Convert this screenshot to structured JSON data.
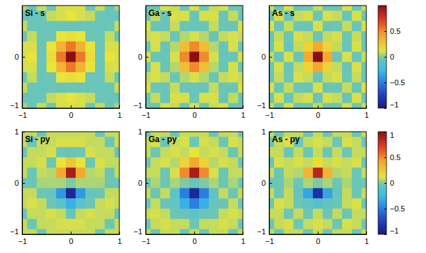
{
  "chart_data": [
    {
      "type": "heatmap",
      "title": "Si - s",
      "x": [
        -1,
        -0.8,
        -0.6,
        -0.4,
        -0.2,
        0,
        0.2,
        0.4,
        0.6,
        0.8,
        1
      ],
      "y": [
        1,
        0.8,
        0.6,
        0.4,
        0.2,
        0,
        -0.2,
        -0.4,
        -0.6,
        -0.8,
        -1
      ],
      "values": [
        [
          0.05,
          -0.04,
          0.08,
          -0.03,
          0.1,
          0.1,
          0.1,
          -0.03,
          0.08,
          -0.04,
          0.05
        ],
        [
          -0.04,
          -0.05,
          -0.03,
          0.08,
          0.1,
          0.12,
          0.1,
          0.08,
          -0.03,
          -0.05,
          -0.04
        ],
        [
          0.08,
          -0.03,
          -0.05,
          -0.04,
          -0.04,
          -0.04,
          -0.04,
          -0.04,
          -0.05,
          -0.03,
          0.08
        ],
        [
          -0.03,
          0.08,
          -0.04,
          -0.03,
          0.12,
          0.15,
          0.12,
          -0.03,
          -0.04,
          0.08,
          -0.03
        ],
        [
          0.1,
          0.1,
          -0.04,
          0.12,
          0.35,
          0.55,
          0.35,
          0.12,
          -0.04,
          0.1,
          0.1
        ],
        [
          0.1,
          0.12,
          -0.04,
          0.15,
          0.55,
          1.0,
          0.55,
          0.15,
          -0.04,
          0.12,
          0.1
        ],
        [
          0.1,
          0.1,
          -0.04,
          0.12,
          0.35,
          0.55,
          0.35,
          0.12,
          -0.04,
          0.1,
          0.1
        ],
        [
          -0.03,
          0.08,
          -0.04,
          -0.03,
          0.12,
          0.15,
          0.12,
          -0.03,
          -0.04,
          0.08,
          -0.03
        ],
        [
          0.08,
          -0.03,
          -0.05,
          -0.04,
          -0.04,
          -0.04,
          -0.04,
          -0.04,
          -0.05,
          -0.03,
          0.08
        ],
        [
          -0.04,
          -0.05,
          -0.03,
          0.08,
          0.1,
          0.12,
          0.1,
          0.08,
          -0.03,
          -0.05,
          -0.04
        ],
        [
          0.05,
          -0.04,
          0.08,
          -0.03,
          0.1,
          0.1,
          0.1,
          -0.03,
          0.08,
          -0.04,
          0.05
        ]
      ],
      "xlim": [
        -1,
        1
      ],
      "ylim": [
        -1,
        1
      ],
      "xticks": [
        {
          "value": -1,
          "label": "−1"
        },
        0,
        1
      ],
      "yticks": [
        {
          "value": -1,
          "label": "−1"
        },
        0
      ],
      "colorbar_range": [
        -1,
        1
      ]
    },
    {
      "type": "heatmap",
      "title": "Ga - s",
      "x": [
        -1,
        -0.8,
        -0.6,
        -0.4,
        -0.2,
        0,
        0.2,
        0.4,
        0.6,
        0.8,
        1
      ],
      "y": [
        1,
        0.8,
        0.6,
        0.4,
        0.2,
        0,
        -0.2,
        -0.4,
        -0.6,
        -0.8,
        -1
      ],
      "values": [
        [
          -0.03,
          -0.04,
          0.1,
          0.08,
          -0.03,
          0.1,
          -0.03,
          0.08,
          0.1,
          -0.04,
          -0.03
        ],
        [
          -0.04,
          0.08,
          -0.04,
          0.1,
          0.1,
          -0.04,
          0.1,
          0.1,
          -0.04,
          0.08,
          -0.04
        ],
        [
          0.1,
          -0.04,
          -0.04,
          0.08,
          -0.04,
          -0.05,
          -0.04,
          0.08,
          -0.04,
          -0.04,
          0.1
        ],
        [
          0.08,
          0.1,
          0.08,
          -0.04,
          0.06,
          0.1,
          0.06,
          -0.04,
          0.08,
          0.1,
          0.08
        ],
        [
          -0.03,
          0.1,
          -0.04,
          0.06,
          0.3,
          0.5,
          0.3,
          0.06,
          -0.04,
          0.1,
          -0.03
        ],
        [
          0.1,
          -0.04,
          -0.05,
          0.1,
          0.5,
          1.0,
          0.5,
          0.1,
          -0.05,
          -0.04,
          0.1
        ],
        [
          -0.03,
          0.1,
          -0.04,
          0.06,
          0.3,
          0.5,
          0.3,
          0.06,
          -0.04,
          0.1,
          -0.03
        ],
        [
          0.08,
          0.1,
          0.08,
          -0.04,
          0.06,
          0.1,
          0.06,
          -0.04,
          0.08,
          0.1,
          0.08
        ],
        [
          0.1,
          -0.04,
          -0.04,
          0.08,
          -0.04,
          -0.05,
          -0.04,
          0.08,
          -0.04,
          -0.04,
          0.1
        ],
        [
          -0.04,
          0.08,
          -0.04,
          0.1,
          0.1,
          -0.04,
          0.1,
          0.1,
          -0.04,
          0.08,
          -0.04
        ],
        [
          -0.03,
          -0.04,
          0.1,
          0.08,
          -0.03,
          0.1,
          -0.03,
          0.08,
          0.1,
          -0.04,
          -0.03
        ]
      ],
      "xlim": [
        -1,
        1
      ],
      "ylim": [
        -1,
        1
      ],
      "xticks": [
        {
          "value": -1,
          "label": "−1"
        },
        0,
        1
      ],
      "yticks": [
        {
          "value": -1,
          "label": "−1"
        },
        0
      ],
      "colorbar_range": [
        -1,
        1
      ]
    },
    {
      "type": "heatmap",
      "title": "As - s",
      "x": [
        -1,
        -0.8,
        -0.6,
        -0.4,
        -0.2,
        0,
        0.2,
        0.4,
        0.6,
        0.8,
        1
      ],
      "y": [
        1,
        0.8,
        0.6,
        0.4,
        0.2,
        0,
        -0.2,
        -0.4,
        -0.6,
        -0.8,
        -1
      ],
      "values": [
        [
          0.08,
          -0.03,
          0.1,
          -0.04,
          -0.03,
          0.08,
          -0.03,
          -0.04,
          0.1,
          -0.03,
          0.08
        ],
        [
          -0.03,
          0.1,
          -0.04,
          0.08,
          0.1,
          -0.04,
          0.1,
          0.08,
          -0.04,
          0.1,
          -0.03
        ],
        [
          0.1,
          -0.04,
          0.08,
          -0.03,
          -0.04,
          0.1,
          -0.04,
          -0.03,
          0.08,
          -0.04,
          0.1
        ],
        [
          -0.04,
          0.08,
          -0.03,
          0.1,
          0.08,
          -0.04,
          0.08,
          0.1,
          -0.03,
          0.08,
          -0.04
        ],
        [
          -0.03,
          0.1,
          -0.04,
          0.08,
          0.2,
          0.4,
          0.2,
          0.08,
          -0.04,
          0.1,
          -0.03
        ],
        [
          0.08,
          -0.04,
          0.1,
          -0.04,
          0.4,
          1.0,
          0.4,
          -0.04,
          0.1,
          -0.04,
          0.08
        ],
        [
          -0.03,
          0.1,
          -0.04,
          0.08,
          0.2,
          0.4,
          0.2,
          0.08,
          -0.04,
          0.1,
          -0.03
        ],
        [
          -0.04,
          0.08,
          -0.03,
          0.1,
          0.08,
          -0.04,
          0.08,
          0.1,
          -0.03,
          0.08,
          -0.04
        ],
        [
          0.1,
          -0.04,
          0.08,
          -0.03,
          -0.04,
          0.1,
          -0.04,
          -0.03,
          0.08,
          -0.04,
          0.1
        ],
        [
          -0.03,
          0.1,
          -0.04,
          0.08,
          0.1,
          -0.04,
          0.1,
          0.08,
          -0.04,
          0.1,
          -0.03
        ],
        [
          0.08,
          -0.03,
          0.1,
          -0.04,
          -0.03,
          0.08,
          -0.03,
          -0.04,
          0.1,
          -0.03,
          0.08
        ]
      ],
      "xlim": [
        -1,
        1
      ],
      "ylim": [
        -1,
        1
      ],
      "xticks": [
        {
          "value": -1,
          "label": "−1"
        },
        0,
        1
      ],
      "yticks": [
        {
          "value": -1,
          "label": "−1"
        },
        0
      ],
      "colorbar_range": [
        -1,
        1
      ],
      "colorbar_ticks": [
        {
          "value": -1,
          "label": "−1"
        },
        {
          "value": -0.5,
          "label": "−0.5"
        },
        0,
        0.5
      ]
    },
    {
      "type": "heatmap",
      "title": "Si - py",
      "x": [
        -1,
        -0.8,
        -0.6,
        -0.4,
        -0.2,
        0,
        0.2,
        0.4,
        0.6,
        0.8,
        1
      ],
      "y": [
        1,
        0.8,
        0.6,
        0.4,
        0.2,
        0,
        -0.2,
        -0.4,
        -0.6,
        -0.8,
        -1
      ],
      "values": [
        [
          0.08,
          0.08,
          -0.03,
          0.08,
          0.08,
          0.08,
          0.08,
          0.08,
          -0.03,
          0.08,
          0.08
        ],
        [
          0.08,
          -0.03,
          0.08,
          0.08,
          0.1,
          0.1,
          0.1,
          0.08,
          0.08,
          -0.03,
          0.08
        ],
        [
          -0.03,
          0.08,
          0.08,
          0.1,
          -0.03,
          -0.04,
          -0.03,
          0.1,
          0.08,
          0.08,
          -0.03
        ],
        [
          0.08,
          0.08,
          0.1,
          -0.03,
          0.12,
          0.25,
          0.12,
          -0.03,
          0.1,
          0.08,
          0.08
        ],
        [
          0.08,
          -0.03,
          0.08,
          0.06,
          0.4,
          0.9,
          0.4,
          0.06,
          0.08,
          -0.03,
          0.08
        ],
        [
          -0.03,
          -0.03,
          0.05,
          0.05,
          0.05,
          0.0,
          0.05,
          0.05,
          0.05,
          -0.03,
          -0.03
        ],
        [
          0.08,
          0.08,
          -0.03,
          -0.06,
          -0.4,
          -0.9,
          -0.4,
          -0.06,
          -0.03,
          0.08,
          0.08
        ],
        [
          0.08,
          0.1,
          0.08,
          -0.03,
          -0.12,
          -0.3,
          -0.12,
          -0.03,
          0.08,
          0.1,
          0.08
        ],
        [
          -0.03,
          0.08,
          0.08,
          0.1,
          0.08,
          -0.04,
          0.08,
          0.1,
          0.08,
          0.08,
          -0.03
        ],
        [
          0.08,
          -0.03,
          0.08,
          0.08,
          0.1,
          0.1,
          0.1,
          0.08,
          0.08,
          -0.03,
          0.08
        ],
        [
          0.08,
          0.08,
          -0.03,
          0.08,
          0.08,
          0.08,
          0.08,
          0.08,
          -0.03,
          0.08,
          0.08
        ]
      ],
      "xlim": [
        -1,
        1
      ],
      "ylim": [
        -1,
        1
      ],
      "xticks": [
        {
          "value": -1,
          "label": "−1"
        },
        0,
        1
      ],
      "yticks": [
        {
          "value": -1,
          "label": "−1"
        },
        0,
        1
      ],
      "colorbar_range": [
        -1,
        1
      ]
    },
    {
      "type": "heatmap",
      "title": "Ga - py",
      "x": [
        -1,
        -0.8,
        -0.6,
        -0.4,
        -0.2,
        0,
        0.2,
        0.4,
        0.6,
        0.8,
        1
      ],
      "y": [
        1,
        0.8,
        0.6,
        0.4,
        0.2,
        0,
        -0.2,
        -0.4,
        -0.6,
        -0.8,
        -1
      ],
      "values": [
        [
          -0.03,
          0.08,
          0.08,
          -0.03,
          0.08,
          0.08,
          0.08,
          -0.03,
          0.08,
          0.08,
          -0.03
        ],
        [
          0.08,
          0.1,
          -0.03,
          0.08,
          0.1,
          -0.03,
          0.1,
          0.08,
          -0.03,
          0.1,
          0.08
        ],
        [
          0.08,
          -0.03,
          0.08,
          0.1,
          0.08,
          0.12,
          0.08,
          0.1,
          0.08,
          -0.03,
          0.08
        ],
        [
          -0.03,
          0.08,
          0.1,
          0.06,
          0.2,
          0.4,
          0.2,
          0.06,
          0.1,
          0.08,
          -0.03
        ],
        [
          0.08,
          0.08,
          -0.03,
          0.1,
          0.5,
          0.9,
          0.5,
          0.1,
          -0.03,
          0.08,
          0.08
        ],
        [
          -0.03,
          0.05,
          -0.03,
          0.05,
          0.0,
          -0.05,
          0.0,
          0.05,
          -0.03,
          0.05,
          -0.03
        ],
        [
          0.08,
          -0.03,
          0.08,
          -0.1,
          -0.5,
          -0.9,
          -0.5,
          -0.1,
          0.08,
          -0.03,
          0.08
        ],
        [
          -0.03,
          0.08,
          -0.04,
          -0.06,
          -0.3,
          -0.5,
          -0.3,
          -0.06,
          -0.04,
          0.08,
          -0.03
        ],
        [
          0.08,
          0.1,
          0.08,
          -0.03,
          -0.05,
          -0.1,
          -0.05,
          -0.03,
          0.08,
          0.1,
          0.08
        ],
        [
          -0.03,
          0.08,
          0.1,
          0.08,
          0.08,
          -0.03,
          0.08,
          0.08,
          0.1,
          0.08,
          -0.03
        ],
        [
          0.08,
          -0.03,
          0.08,
          0.08,
          -0.03,
          0.08,
          -0.03,
          0.08,
          0.08,
          -0.03,
          0.08
        ]
      ],
      "xlim": [
        -1,
        1
      ],
      "ylim": [
        -1,
        1
      ],
      "xticks": [
        {
          "value": -1,
          "label": "−1"
        },
        0,
        1
      ],
      "yticks": [
        {
          "value": -1,
          "label": "−1"
        },
        0,
        1
      ],
      "colorbar_range": [
        -1,
        1
      ]
    },
    {
      "type": "heatmap",
      "title": "As - py",
      "x": [
        -1,
        -0.8,
        -0.6,
        -0.4,
        -0.2,
        0,
        0.2,
        0.4,
        0.6,
        0.8,
        1
      ],
      "y": [
        1,
        0.8,
        0.6,
        0.4,
        0.2,
        0,
        -0.2,
        -0.4,
        -0.6,
        -0.8,
        -1
      ],
      "values": [
        [
          0.08,
          -0.03,
          0.08,
          0.08,
          -0.03,
          0.08,
          -0.03,
          0.08,
          0.08,
          -0.03,
          0.08
        ],
        [
          -0.03,
          0.08,
          0.1,
          -0.03,
          0.08,
          0.1,
          0.08,
          -0.03,
          0.1,
          0.08,
          -0.03
        ],
        [
          0.08,
          0.08,
          -0.03,
          0.08,
          -0.03,
          0.08,
          -0.03,
          0.08,
          -0.03,
          0.08,
          0.08
        ],
        [
          -0.03,
          0.1,
          0.08,
          0.1,
          0.08,
          0.15,
          0.08,
          0.1,
          0.08,
          0.1,
          -0.03
        ],
        [
          0.08,
          -0.03,
          0.08,
          0.06,
          0.35,
          0.85,
          0.35,
          0.06,
          0.08,
          -0.03,
          0.08
        ],
        [
          -0.03,
          -0.03,
          0.05,
          -0.03,
          0.05,
          0.0,
          0.05,
          -0.03,
          0.05,
          -0.03,
          -0.03
        ],
        [
          0.08,
          -0.03,
          0.08,
          -0.06,
          -0.35,
          -0.85,
          -0.35,
          -0.06,
          0.08,
          -0.03,
          0.08
        ],
        [
          -0.03,
          0.1,
          0.08,
          -0.03,
          -0.08,
          -0.15,
          -0.08,
          -0.03,
          0.08,
          0.1,
          -0.03
        ],
        [
          0.08,
          0.08,
          -0.03,
          0.08,
          -0.03,
          0.08,
          -0.03,
          0.08,
          -0.03,
          0.08,
          0.08
        ],
        [
          -0.03,
          0.08,
          0.1,
          -0.03,
          0.08,
          0.1,
          0.08,
          -0.03,
          0.1,
          0.08,
          -0.03
        ],
        [
          0.08,
          -0.03,
          0.08,
          0.08,
          -0.03,
          0.08,
          -0.03,
          0.08,
          0.08,
          -0.03,
          0.08
        ]
      ],
      "xlim": [
        -1,
        1
      ],
      "ylim": [
        -1,
        1
      ],
      "xticks": [
        {
          "value": -1,
          "label": "−1"
        },
        0,
        1
      ],
      "yticks": [
        {
          "value": -1,
          "label": "−1"
        },
        0,
        1
      ],
      "colorbar_range": [
        -1,
        1
      ],
      "colorbar_ticks": [
        {
          "value": -1,
          "label": "−1"
        },
        {
          "value": -0.5,
          "label": "−0.5"
        },
        0,
        0.5,
        1
      ]
    }
  ]
}
